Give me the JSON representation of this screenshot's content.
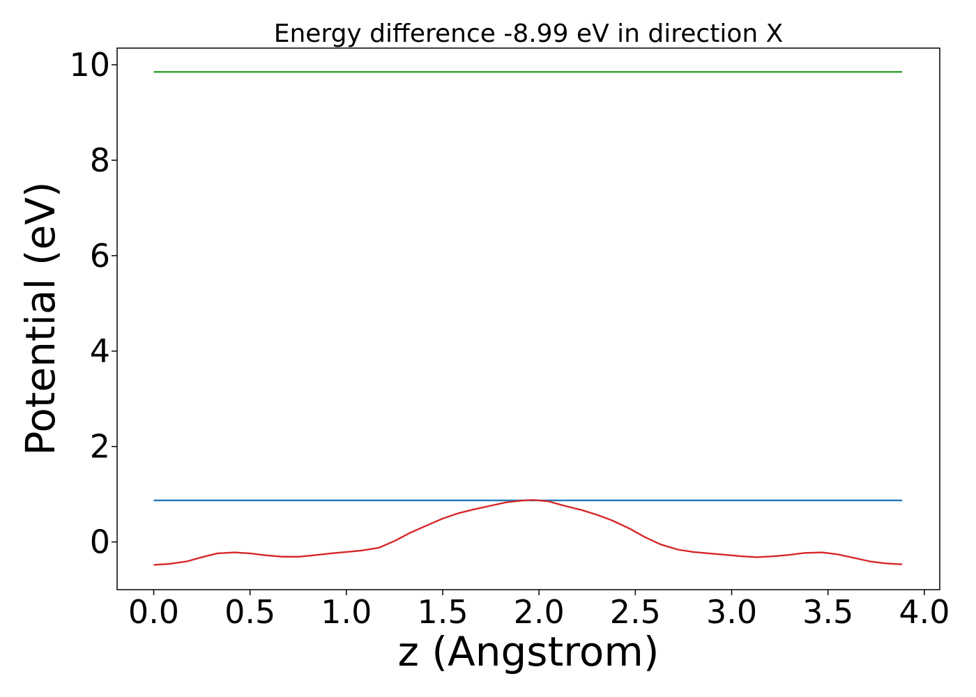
{
  "chart_data": {
    "type": "line",
    "title": "Energy difference -8.99 eV in direction X",
    "xlabel": "z (Angstrom)",
    "ylabel": "Potential (eV)",
    "xlim": [
      -0.19,
      4.08
    ],
    "ylim": [
      -1.0,
      10.35
    ],
    "xticks": [
      0.0,
      0.5,
      1.0,
      1.5,
      2.0,
      2.5,
      3.0,
      3.5,
      4.0
    ],
    "xtick_labels": [
      "0.0",
      "0.5",
      "1.0",
      "1.5",
      "2.0",
      "2.5",
      "3.0",
      "3.5",
      "4.0"
    ],
    "yticks": [
      0,
      2,
      4,
      6,
      8,
      10
    ],
    "ytick_labels": [
      "0",
      "2",
      "4",
      "6",
      "8",
      "10"
    ],
    "grid": false,
    "legend": false,
    "series": [
      {
        "color": "#2ca02c",
        "x": [
          0.0,
          3.885
        ],
        "y": [
          9.85,
          9.85
        ]
      },
      {
        "color": "#1f77b4",
        "x": [
          0.0,
          3.885
        ],
        "y": [
          0.87,
          0.87
        ]
      },
      {
        "color": "#d62728",
        "x": [
          0.0,
          0.08,
          0.17,
          0.25,
          0.33,
          0.42,
          0.5,
          0.58,
          0.67,
          0.75,
          0.83,
          0.92,
          1.0,
          1.08,
          1.17,
          1.25,
          1.33,
          1.42,
          1.5,
          1.58,
          1.67,
          1.75,
          1.83,
          1.92,
          1.97,
          2.05,
          2.13,
          2.22,
          2.3,
          2.38,
          2.47,
          2.55,
          2.63,
          2.72,
          2.8,
          2.88,
          2.97,
          3.05,
          3.13,
          3.22,
          3.3,
          3.38,
          3.47,
          3.55,
          3.63,
          3.72,
          3.8,
          3.885
        ],
        "y": [
          -0.48,
          -0.46,
          -0.41,
          -0.32,
          -0.24,
          -0.22,
          -0.24,
          -0.28,
          -0.31,
          -0.31,
          -0.28,
          -0.24,
          -0.21,
          -0.18,
          -0.12,
          0.02,
          0.19,
          0.35,
          0.49,
          0.6,
          0.69,
          0.76,
          0.83,
          0.87,
          0.88,
          0.85,
          0.76,
          0.67,
          0.57,
          0.45,
          0.28,
          0.1,
          -0.05,
          -0.16,
          -0.21,
          -0.24,
          -0.27,
          -0.3,
          -0.32,
          -0.3,
          -0.27,
          -0.23,
          -0.22,
          -0.26,
          -0.33,
          -0.41,
          -0.45,
          -0.47
        ]
      }
    ]
  }
}
